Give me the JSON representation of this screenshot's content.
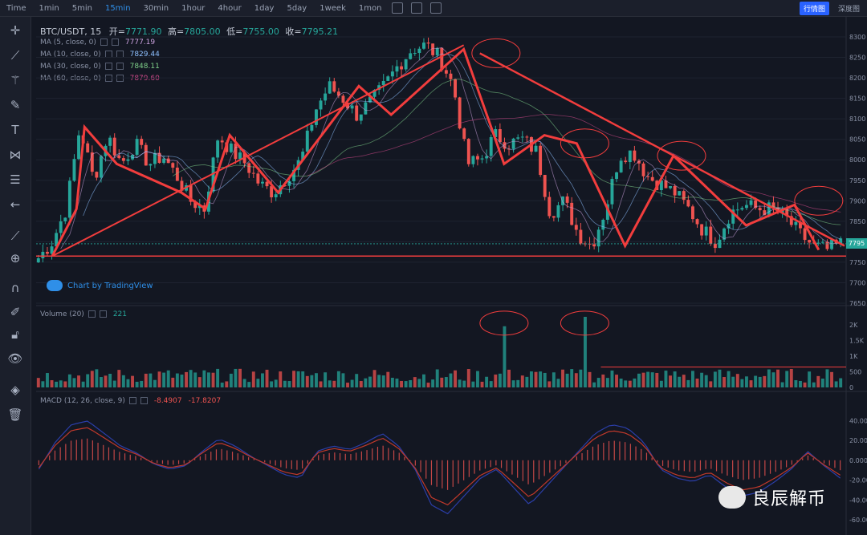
{
  "topbar": {
    "timeframes": [
      "Time",
      "1min",
      "5min",
      "15min",
      "30min",
      "1hour",
      "4hour",
      "1day",
      "5day",
      "1week",
      "1mon"
    ],
    "active": "15min",
    "right_buttons": [
      "行情图",
      "深度图"
    ]
  },
  "symbol": {
    "name": "BTC/USDT, 15",
    "open_label": "开=",
    "open": "7771.90",
    "high_label": "高=",
    "high": "7805.00",
    "low_label": "低=",
    "low": "7755.00",
    "close_label": "收=",
    "close": "7795.21"
  },
  "ma_legend": [
    {
      "label": "MA (5, close, 0)",
      "value": "7777.19",
      "color": "#c9a0dc"
    },
    {
      "label": "MA (10, close, 0)",
      "value": "7829.44",
      "color": "#8ec0ff"
    },
    {
      "label": "MA (30, close, 0)",
      "value": "7848.11",
      "color": "#7fd08a"
    },
    {
      "label": "MA (60, close, 0)",
      "value": "7879.60",
      "color": "#d04a8a"
    }
  ],
  "volume_legend": {
    "label": "Volume (20)",
    "value": "221"
  },
  "macd_legend": {
    "label": "MACD (12, 26, close, 9)",
    "v1": "-8.4907",
    "v2": "-17.8207"
  },
  "tradingview": "Chart by TradingView",
  "watermark": "良辰解币",
  "current_price": "7795",
  "chart_data": [
    {
      "type": "candlestick",
      "ylim": [
        7650,
        8300
      ],
      "yticks": [
        "8300",
        "8250",
        "8200",
        "8150",
        "8100",
        "8050",
        "8000",
        "7950",
        "7900",
        "7850",
        "7800",
        "7750",
        "7700",
        "7650"
      ],
      "close_path": [
        7760,
        7800,
        7880,
        8080,
        7950,
        8060,
        7990,
        8040,
        7990,
        8010,
        7960,
        7900,
        7880,
        8060,
        8020,
        7990,
        7940,
        7920,
        7960,
        8000,
        8120,
        8180,
        8150,
        8110,
        8140,
        8180,
        8230,
        8270,
        8280,
        8250,
        8180,
        7990,
        8000,
        8060,
        8040,
        8050,
        8020,
        7870,
        7900,
        7820,
        7790,
        7880,
        8010,
        8020,
        7960,
        7940,
        7920,
        7880,
        7830,
        7800,
        7870,
        7890,
        7880,
        7880,
        7860,
        7820,
        7790,
        7780,
        7795
      ],
      "reference_line": 7765,
      "colors": {
        "up": "#26a69a",
        "down": "#ef5350",
        "annotation": "#f23d3d"
      }
    },
    {
      "type": "bar",
      "title": "Volume (20)",
      "ylim": [
        0,
        2250
      ],
      "yticks": [
        "2K",
        "1.5K",
        "1K",
        "500",
        "0"
      ],
      "spikes": [
        {
          "label": "a",
          "value": 1950
        },
        {
          "label": "b",
          "value": 2250
        }
      ],
      "reference_line": 650
    },
    {
      "type": "bar",
      "title": "MACD (12, 26, close, 9)",
      "ylim": [
        -60,
        50
      ],
      "yticks": [
        "40.00",
        "20.00",
        "0.000",
        "-20.00",
        "-40.00",
        "-60.00"
      ],
      "histogram_shape": [
        -5,
        10,
        20,
        22,
        15,
        8,
        4,
        -2,
        -5,
        -3,
        5,
        12,
        8,
        2,
        -3,
        -8,
        -10,
        5,
        8,
        6,
        10,
        15,
        8,
        -5,
        -25,
        -30,
        -20,
        -10,
        -5,
        -15,
        -25,
        -15,
        -5,
        5,
        15,
        20,
        18,
        10,
        -5,
        -10,
        -12,
        -8,
        -15,
        -20,
        -18,
        -12,
        -5,
        5,
        -3,
        -10
      ]
    }
  ]
}
